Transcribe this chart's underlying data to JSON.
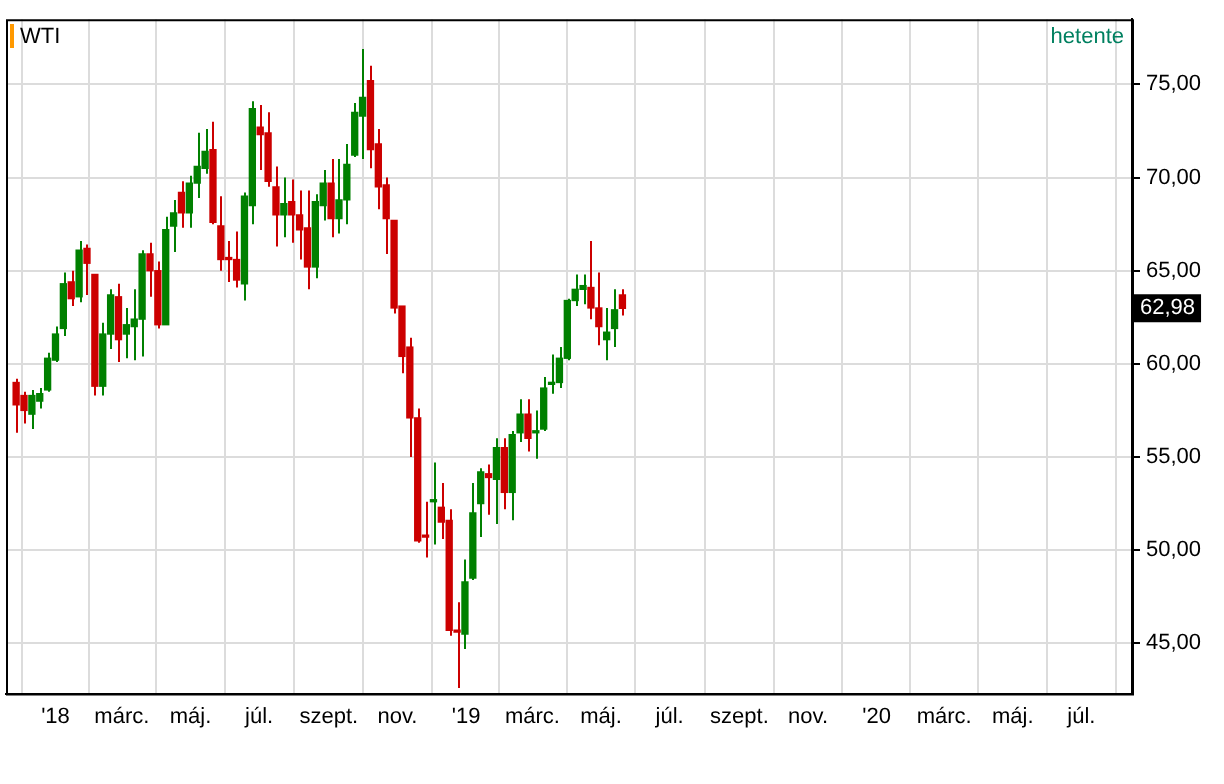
{
  "chart_data": {
    "type": "candlestick",
    "title": "WTI",
    "subtitle": "hetente",
    "x": [
      "2017-11-27",
      "2017-12-04",
      "2017-12-11",
      "2017-12-18",
      "2017-12-25",
      "2018-01-01",
      "2018-01-08",
      "2018-01-15",
      "2018-01-22",
      "2018-01-29",
      "2018-02-05",
      "2018-02-12",
      "2018-02-19",
      "2018-02-26",
      "2018-03-05",
      "2018-03-12",
      "2018-03-19",
      "2018-03-26",
      "2018-04-02",
      "2018-04-09",
      "2018-04-16",
      "2018-04-23",
      "2018-04-30",
      "2018-05-07",
      "2018-05-14",
      "2018-05-21",
      "2018-05-28",
      "2018-06-04",
      "2018-06-11",
      "2018-06-18",
      "2018-06-25",
      "2018-07-02",
      "2018-07-09",
      "2018-07-16",
      "2018-07-23",
      "2018-07-30",
      "2018-08-06",
      "2018-08-13",
      "2018-08-20",
      "2018-08-27",
      "2018-09-03",
      "2018-09-10",
      "2018-09-17",
      "2018-09-24",
      "2018-10-01",
      "2018-10-08",
      "2018-10-15",
      "2018-10-22",
      "2018-10-29",
      "2018-11-05",
      "2018-11-12",
      "2018-11-19",
      "2018-11-26",
      "2018-12-03",
      "2018-12-10",
      "2018-12-17",
      "2018-12-24",
      "2018-12-31",
      "2019-01-07",
      "2019-01-14",
      "2019-01-21",
      "2019-01-28",
      "2019-02-04",
      "2019-02-11",
      "2019-02-18",
      "2019-02-25",
      "2019-03-04",
      "2019-03-11",
      "2019-03-18",
      "2019-03-25",
      "2019-04-01",
      "2019-04-08",
      "2019-04-15",
      "2019-04-22",
      "2019-04-29",
      "2019-05-06",
      "2019-05-13",
      "2019-05-20"
    ],
    "ohlc": [
      [
        59.0,
        59.2,
        56.3,
        57.8
      ],
      [
        58.3,
        58.5,
        56.8,
        57.5
      ],
      [
        57.3,
        58.6,
        56.5,
        58.3
      ],
      [
        58.0,
        58.7,
        57.6,
        58.4
      ],
      [
        58.6,
        60.6,
        58.5,
        60.3
      ],
      [
        60.2,
        62.0,
        60.1,
        61.6
      ],
      [
        61.9,
        64.9,
        61.5,
        64.3
      ],
      [
        64.4,
        65.0,
        63.1,
        63.5
      ],
      [
        63.6,
        66.6,
        63.3,
        66.1
      ],
      [
        66.2,
        66.4,
        63.7,
        65.4
      ],
      [
        64.8,
        64.8,
        58.3,
        58.8
      ],
      [
        58.8,
        62.2,
        58.3,
        61.6
      ],
      [
        61.6,
        64.0,
        60.8,
        63.7
      ],
      [
        63.6,
        64.3,
        60.1,
        61.3
      ],
      [
        61.6,
        63.0,
        60.3,
        62.1
      ],
      [
        62.0,
        64.0,
        60.2,
        62.4
      ],
      [
        62.4,
        66.1,
        60.4,
        65.9
      ],
      [
        65.9,
        66.5,
        63.6,
        65.0
      ],
      [
        65.0,
        65.5,
        61.9,
        62.1
      ],
      [
        62.1,
        67.9,
        62.1,
        67.2
      ],
      [
        67.4,
        68.8,
        66.0,
        68.1
      ],
      [
        69.2,
        69.8,
        67.3,
        68.1
      ],
      [
        68.1,
        70.1,
        67.3,
        69.7
      ],
      [
        69.7,
        72.4,
        68.9,
        70.6
      ],
      [
        70.5,
        72.6,
        70.2,
        71.4
      ],
      [
        71.5,
        73.0,
        67.5,
        67.6
      ],
      [
        67.4,
        69.0,
        65.0,
        65.6
      ],
      [
        65.7,
        66.6,
        64.4,
        65.6
      ],
      [
        65.6,
        67.1,
        64.1,
        64.5
      ],
      [
        64.3,
        69.2,
        63.4,
        69.0
      ],
      [
        68.5,
        74.1,
        67.5,
        73.7
      ],
      [
        72.7,
        73.9,
        70.4,
        72.3
      ],
      [
        72.4,
        73.5,
        69.5,
        69.8
      ],
      [
        69.5,
        70.6,
        66.3,
        68.0
      ],
      [
        68.0,
        70.0,
        66.8,
        68.6
      ],
      [
        68.7,
        69.9,
        66.5,
        68.0
      ],
      [
        68.0,
        69.3,
        65.6,
        67.2
      ],
      [
        67.3,
        69.3,
        64.0,
        65.2
      ],
      [
        65.2,
        69.1,
        64.6,
        68.7
      ],
      [
        68.5,
        70.4,
        67.7,
        69.7
      ],
      [
        69.7,
        71.0,
        66.8,
        67.8
      ],
      [
        67.8,
        71.0,
        67.0,
        68.8
      ],
      [
        68.8,
        71.8,
        67.5,
        70.7
      ],
      [
        71.2,
        74.0,
        71.1,
        73.5
      ],
      [
        73.3,
        76.9,
        71.0,
        74.3
      ],
      [
        75.2,
        76.0,
        70.5,
        71.5
      ],
      [
        71.8,
        72.6,
        68.3,
        69.5
      ],
      [
        69.6,
        70.0,
        65.9,
        67.8
      ],
      [
        67.7,
        67.7,
        62.7,
        63.0
      ],
      [
        63.1,
        63.1,
        59.5,
        60.4
      ],
      [
        60.9,
        61.4,
        55.0,
        57.1
      ],
      [
        57.1,
        57.6,
        50.4,
        50.5
      ],
      [
        50.8,
        52.6,
        49.6,
        50.7
      ],
      [
        52.6,
        54.7,
        50.3,
        52.7
      ],
      [
        52.3,
        53.6,
        50.6,
        51.5
      ],
      [
        51.6,
        52.2,
        45.4,
        45.7
      ],
      [
        45.7,
        47.2,
        42.6,
        45.6
      ],
      [
        45.5,
        49.5,
        44.7,
        48.3
      ],
      [
        48.5,
        53.6,
        48.4,
        52.0
      ],
      [
        52.5,
        54.4,
        50.7,
        54.2
      ],
      [
        54.1,
        54.6,
        51.9,
        53.9
      ],
      [
        53.8,
        56.0,
        51.4,
        55.5
      ],
      [
        55.5,
        56.0,
        52.2,
        53.1
      ],
      [
        53.1,
        56.4,
        51.6,
        56.2
      ],
      [
        56.3,
        58.1,
        55.8,
        57.3
      ],
      [
        57.3,
        58.1,
        55.3,
        56.0
      ],
      [
        56.3,
        57.5,
        54.9,
        56.4
      ],
      [
        56.5,
        59.3,
        56.4,
        58.7
      ],
      [
        58.9,
        60.5,
        58.4,
        58.9
      ],
      [
        59.0,
        60.9,
        58.7,
        60.3
      ],
      [
        60.3,
        63.5,
        60.2,
        63.4
      ],
      [
        63.4,
        64.8,
        63.1,
        64.0
      ],
      [
        64.0,
        64.8,
        63.2,
        64.2
      ],
      [
        64.1,
        66.6,
        62.4,
        63.0
      ],
      [
        63.0,
        64.9,
        61.0,
        62.0
      ],
      [
        61.3,
        63.0,
        60.2,
        61.7
      ],
      [
        61.9,
        64.0,
        60.9,
        62.9
      ],
      [
        63.7,
        64.0,
        62.6,
        62.98
      ]
    ],
    "xlim": [
      "2017-11-18",
      "2020-08-15"
    ],
    "xticks": [
      {
        "value": "2018-01-01",
        "label": "'18"
      },
      {
        "value": "2018-03-01",
        "label": "márc."
      },
      {
        "value": "2018-05-01",
        "label": "máj."
      },
      {
        "value": "2018-07-01",
        "label": "júl."
      },
      {
        "value": "2018-09-01",
        "label": "szept."
      },
      {
        "value": "2018-11-01",
        "label": "nov."
      },
      {
        "value": "2019-01-01",
        "label": "'19"
      },
      {
        "value": "2019-03-01",
        "label": "márc."
      },
      {
        "value": "2019-05-01",
        "label": "máj."
      },
      {
        "value": "2019-07-01",
        "label": "júl."
      },
      {
        "value": "2019-09-01",
        "label": "szept."
      },
      {
        "value": "2019-11-01",
        "label": "nov."
      },
      {
        "value": "2020-01-01",
        "label": "'20"
      },
      {
        "value": "2020-03-01",
        "label": "márc."
      },
      {
        "value": "2020-05-01",
        "label": "máj."
      },
      {
        "value": "2020-07-01",
        "label": "júl."
      }
    ],
    "ylim": [
      42.3,
      78.5
    ],
    "yticks": [
      {
        "value": 45,
        "label": "45,00"
      },
      {
        "value": 50,
        "label": "50,00"
      },
      {
        "value": 55,
        "label": "55,00"
      },
      {
        "value": 60,
        "label": "60,00"
      },
      {
        "value": 65,
        "label": "65,00"
      },
      {
        "value": 70,
        "label": "70,00"
      },
      {
        "value": 75,
        "label": "75,00"
      }
    ],
    "annotations": [
      {
        "text": "62,98",
        "y": 62.98
      }
    ],
    "grid": true,
    "legend": false
  }
}
